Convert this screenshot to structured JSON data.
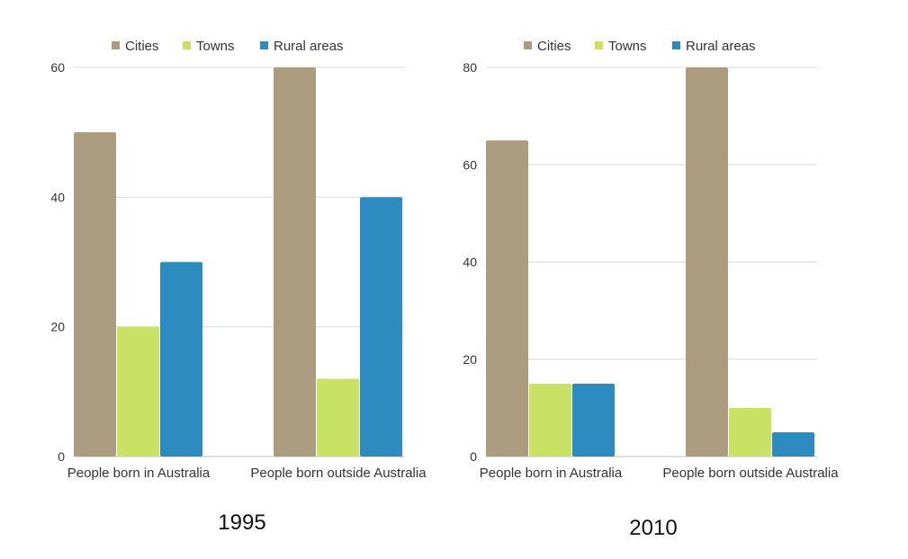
{
  "colors": {
    "Cities": "#ab9c80",
    "Towns": "#c9e265",
    "Rural areas": "#2e8bbf",
    "grid": "#d9d9d9",
    "baseline": "#bfbfbf"
  },
  "chart_data": [
    {
      "type": "bar",
      "title": "1995",
      "categories": [
        "People born in Australia",
        "People born outside Australia"
      ],
      "series": [
        {
          "name": "Cities",
          "values": [
            50,
            60
          ]
        },
        {
          "name": "Towns",
          "values": [
            20,
            12
          ]
        },
        {
          "name": "Rural areas",
          "values": [
            30,
            40
          ]
        }
      ],
      "ylim": [
        0,
        60
      ],
      "yticks": [
        "0",
        "20",
        "40",
        "60"
      ],
      "xlabel": "",
      "ylabel": "",
      "grid": true,
      "legend": "top"
    },
    {
      "type": "bar",
      "title": "2010",
      "categories": [
        "People born in Australia",
        "People born outside Australia"
      ],
      "series": [
        {
          "name": "Cities",
          "values": [
            65,
            80
          ]
        },
        {
          "name": "Towns",
          "values": [
            15,
            10
          ]
        },
        {
          "name": "Rural areas",
          "values": [
            15,
            5
          ]
        }
      ],
      "ylim": [
        0,
        80
      ],
      "yticks": [
        "0",
        "20",
        "40",
        "60",
        "80"
      ],
      "xlabel": "",
      "ylabel": "",
      "grid": true,
      "legend": "top"
    }
  ]
}
